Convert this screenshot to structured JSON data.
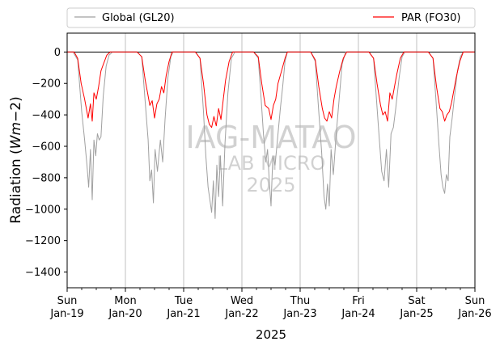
{
  "chart_data": {
    "type": "line",
    "title": "",
    "xlabel": "2025",
    "ylabel": "Radiation (Wm−2)",
    "ylim": [
      -1500,
      120
    ],
    "yticks": [
      0,
      -200,
      -400,
      -600,
      -800,
      -1000,
      -1200,
      -1400
    ],
    "xlim_days": [
      0,
      7
    ],
    "xticks": [
      {
        "day": "Sun",
        "date": "Jan-19"
      },
      {
        "day": "Mon",
        "date": "Jan-20"
      },
      {
        "day": "Tue",
        "date": "Jan-21"
      },
      {
        "day": "Wed",
        "date": "Jan-22"
      },
      {
        "day": "Thu",
        "date": "Jan-23"
      },
      {
        "day": "Fri",
        "date": "Jan-24"
      },
      {
        "day": "Sat",
        "date": "Jan-25"
      },
      {
        "day": "Sun",
        "date": "Jan-26"
      }
    ],
    "grid": "vertical at day ticks",
    "reference_line": 0,
    "legend": {
      "position": "top, above plot",
      "entries": [
        "Global (GL20)",
        "PAR (FO30)"
      ]
    },
    "watermark": [
      "IAG-MATAO",
      "LAB MICRO",
      "2025"
    ],
    "series": [
      {
        "name": "Global (GL20)",
        "color": "#a0a0a0",
        "points": [
          [
            0.0,
            0
          ],
          [
            0.1,
            0
          ],
          [
            0.18,
            -50
          ],
          [
            0.25,
            -380
          ],
          [
            0.3,
            -560
          ],
          [
            0.34,
            -720
          ],
          [
            0.37,
            -860
          ],
          [
            0.4,
            -620
          ],
          [
            0.43,
            -940
          ],
          [
            0.46,
            -560
          ],
          [
            0.49,
            -660
          ],
          [
            0.52,
            -520
          ],
          [
            0.55,
            -560
          ],
          [
            0.58,
            -540
          ],
          [
            0.62,
            -280
          ],
          [
            0.67,
            -90
          ],
          [
            0.72,
            -20
          ],
          [
            0.78,
            0
          ],
          [
            1.2,
            0
          ],
          [
            1.28,
            -30
          ],
          [
            1.34,
            -320
          ],
          [
            1.39,
            -560
          ],
          [
            1.42,
            -820
          ],
          [
            1.45,
            -750
          ],
          [
            1.48,
            -960
          ],
          [
            1.51,
            -620
          ],
          [
            1.55,
            -760
          ],
          [
            1.6,
            -560
          ],
          [
            1.64,
            -700
          ],
          [
            1.68,
            -430
          ],
          [
            1.73,
            -160
          ],
          [
            1.78,
            -30
          ],
          [
            1.82,
            0
          ],
          [
            2.2,
            0
          ],
          [
            2.28,
            -40
          ],
          [
            2.34,
            -380
          ],
          [
            2.38,
            -660
          ],
          [
            2.42,
            -860
          ],
          [
            2.45,
            -940
          ],
          [
            2.48,
            -1020
          ],
          [
            2.51,
            -820
          ],
          [
            2.54,
            -1060
          ],
          [
            2.57,
            -720
          ],
          [
            2.6,
            -920
          ],
          [
            2.63,
            -660
          ],
          [
            2.67,
            -980
          ],
          [
            2.71,
            -580
          ],
          [
            2.76,
            -260
          ],
          [
            2.82,
            -40
          ],
          [
            2.88,
            0
          ],
          [
            3.2,
            0
          ],
          [
            3.28,
            -40
          ],
          [
            3.33,
            -300
          ],
          [
            3.37,
            -520
          ],
          [
            3.41,
            -700
          ],
          [
            3.44,
            -620
          ],
          [
            3.47,
            -820
          ],
          [
            3.5,
            -980
          ],
          [
            3.53,
            -660
          ],
          [
            3.57,
            -720
          ],
          [
            3.61,
            -560
          ],
          [
            3.66,
            -360
          ],
          [
            3.7,
            -220
          ],
          [
            3.74,
            -60
          ],
          [
            3.78,
            0
          ],
          [
            4.18,
            0
          ],
          [
            4.26,
            -60
          ],
          [
            4.32,
            -380
          ],
          [
            4.37,
            -640
          ],
          [
            4.41,
            -920
          ],
          [
            4.44,
            -1000
          ],
          [
            4.47,
            -840
          ],
          [
            4.5,
            -980
          ],
          [
            4.53,
            -620
          ],
          [
            4.57,
            -780
          ],
          [
            4.62,
            -520
          ],
          [
            4.67,
            -300
          ],
          [
            4.72,
            -80
          ],
          [
            4.78,
            0
          ],
          [
            5.18,
            0
          ],
          [
            5.26,
            -40
          ],
          [
            5.31,
            -300
          ],
          [
            5.36,
            -560
          ],
          [
            5.4,
            -760
          ],
          [
            5.44,
            -820
          ],
          [
            5.48,
            -620
          ],
          [
            5.52,
            -860
          ],
          [
            5.56,
            -520
          ],
          [
            5.6,
            -480
          ],
          [
            5.64,
            -360
          ],
          [
            5.7,
            -160
          ],
          [
            5.75,
            -30
          ],
          [
            5.8,
            0
          ],
          [
            6.2,
            0
          ],
          [
            6.28,
            -40
          ],
          [
            6.33,
            -300
          ],
          [
            6.38,
            -580
          ],
          [
            6.42,
            -780
          ],
          [
            6.45,
            -860
          ],
          [
            6.48,
            -900
          ],
          [
            6.51,
            -780
          ],
          [
            6.54,
            -820
          ],
          [
            6.57,
            -540
          ],
          [
            6.61,
            -420
          ],
          [
            6.65,
            -280
          ],
          [
            6.7,
            -120
          ],
          [
            6.75,
            -30
          ],
          [
            6.8,
            0
          ],
          [
            7.0,
            0
          ]
        ]
      },
      {
        "name": "PAR (FO30)",
        "color": "#ff0000",
        "points": [
          [
            0.0,
            0
          ],
          [
            0.12,
            0
          ],
          [
            0.18,
            -40
          ],
          [
            0.24,
            -200
          ],
          [
            0.3,
            -300
          ],
          [
            0.36,
            -420
          ],
          [
            0.4,
            -330
          ],
          [
            0.43,
            -440
          ],
          [
            0.46,
            -260
          ],
          [
            0.5,
            -300
          ],
          [
            0.54,
            -220
          ],
          [
            0.58,
            -120
          ],
          [
            0.62,
            -80
          ],
          [
            0.68,
            -20
          ],
          [
            0.74,
            0
          ],
          [
            1.2,
            0
          ],
          [
            1.28,
            -30
          ],
          [
            1.34,
            -180
          ],
          [
            1.38,
            -260
          ],
          [
            1.42,
            -340
          ],
          [
            1.46,
            -310
          ],
          [
            1.5,
            -420
          ],
          [
            1.54,
            -330
          ],
          [
            1.58,
            -300
          ],
          [
            1.62,
            -220
          ],
          [
            1.66,
            -260
          ],
          [
            1.7,
            -150
          ],
          [
            1.75,
            -60
          ],
          [
            1.8,
            0
          ],
          [
            2.2,
            0
          ],
          [
            2.28,
            -40
          ],
          [
            2.34,
            -200
          ],
          [
            2.4,
            -400
          ],
          [
            2.44,
            -460
          ],
          [
            2.48,
            -480
          ],
          [
            2.52,
            -410
          ],
          [
            2.56,
            -470
          ],
          [
            2.6,
            -360
          ],
          [
            2.64,
            -430
          ],
          [
            2.68,
            -300
          ],
          [
            2.72,
            -180
          ],
          [
            2.78,
            -60
          ],
          [
            2.84,
            0
          ],
          [
            3.2,
            0
          ],
          [
            3.28,
            -30
          ],
          [
            3.34,
            -200
          ],
          [
            3.4,
            -340
          ],
          [
            3.46,
            -360
          ],
          [
            3.5,
            -430
          ],
          [
            3.54,
            -340
          ],
          [
            3.58,
            -300
          ],
          [
            3.62,
            -200
          ],
          [
            3.68,
            -120
          ],
          [
            3.74,
            -40
          ],
          [
            3.78,
            0
          ],
          [
            4.18,
            0
          ],
          [
            4.26,
            -50
          ],
          [
            4.32,
            -220
          ],
          [
            4.38,
            -360
          ],
          [
            4.42,
            -420
          ],
          [
            4.46,
            -440
          ],
          [
            4.5,
            -380
          ],
          [
            4.54,
            -420
          ],
          [
            4.58,
            -300
          ],
          [
            4.62,
            -220
          ],
          [
            4.68,
            -120
          ],
          [
            4.74,
            -40
          ],
          [
            4.8,
            0
          ],
          [
            5.18,
            0
          ],
          [
            5.26,
            -40
          ],
          [
            5.32,
            -200
          ],
          [
            5.38,
            -340
          ],
          [
            5.42,
            -400
          ],
          [
            5.46,
            -380
          ],
          [
            5.5,
            -440
          ],
          [
            5.54,
            -260
          ],
          [
            5.58,
            -300
          ],
          [
            5.62,
            -220
          ],
          [
            5.66,
            -140
          ],
          [
            5.72,
            -40
          ],
          [
            5.78,
            0
          ],
          [
            6.2,
            0
          ],
          [
            6.28,
            -40
          ],
          [
            6.34,
            -220
          ],
          [
            6.4,
            -360
          ],
          [
            6.44,
            -380
          ],
          [
            6.48,
            -440
          ],
          [
            6.52,
            -400
          ],
          [
            6.56,
            -380
          ],
          [
            6.6,
            -320
          ],
          [
            6.64,
            -240
          ],
          [
            6.68,
            -160
          ],
          [
            6.74,
            -60
          ],
          [
            6.8,
            0
          ],
          [
            7.0,
            0
          ]
        ]
      }
    ]
  }
}
